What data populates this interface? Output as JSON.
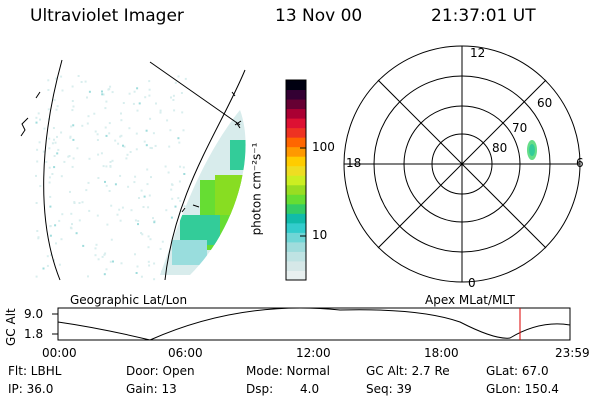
{
  "header": {
    "instrument": "Ultraviolet Imager",
    "date": "13 Nov 00",
    "time": "21:37:01 UT"
  },
  "colorbar": {
    "unit_label": "photon cm⁻²s⁻¹",
    "tick_labels": [
      "100",
      "10"
    ],
    "colors": [
      "#e8f0f0",
      "#d6e8e8",
      "#bfe3e3",
      "#9fdcdc",
      "#6fd6d6",
      "#33cccc",
      "#11bbaa",
      "#33cc66",
      "#66dd33",
      "#99dd22",
      "#ccee22",
      "#eedd22",
      "#ffcc00",
      "#ff9900",
      "#ff6600",
      "#ee3322",
      "#dd1133",
      "#aa0033",
      "#660033",
      "#330033",
      "#000011"
    ]
  },
  "geo_panel": {
    "label": "Geographic Lat/Lon"
  },
  "polar_panel": {
    "label": "Apex MLat/MLT",
    "mlt_labels": {
      "top": "12",
      "left": "18",
      "right": "6",
      "bottom": "0"
    },
    "lat_labels": [
      "60",
      "70",
      "80"
    ]
  },
  "timeline": {
    "ylabel": "GC Alt",
    "yticks": [
      "9.0",
      "1.8"
    ],
    "xticks": [
      "00:00",
      "06:00",
      "12:00",
      "18:00",
      "23:59"
    ],
    "marker_color": "#dd0000"
  },
  "footer": {
    "flt": "Flt: LBHL",
    "ip": "IP: 36.0",
    "door": "Door: Open",
    "gain": "Gain: 13",
    "mode": "Mode: Normal",
    "dsp_label": "Dsp:",
    "dsp_value": "4.0",
    "gc_alt": "GC Alt: 2.7 Re",
    "seq": "Seq: 39",
    "glat": "GLat:  67.0",
    "glon": "GLon: 150.4"
  }
}
